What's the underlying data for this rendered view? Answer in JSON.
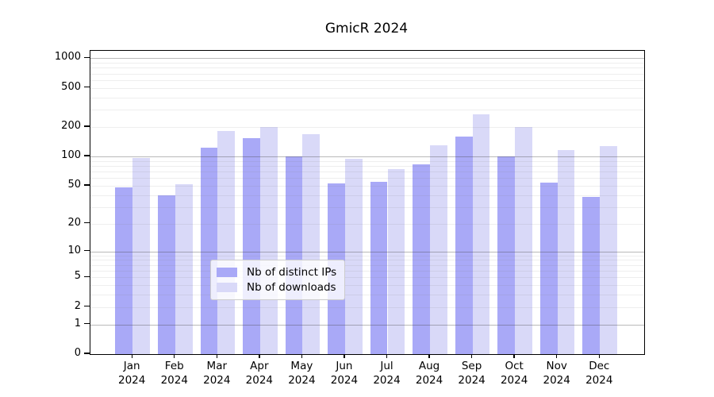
{
  "chart_data": {
    "type": "bar",
    "title": "GmicR 2024",
    "x_year": "2024",
    "categories": [
      "Jan",
      "Feb",
      "Mar",
      "Apr",
      "May",
      "Jun",
      "Jul",
      "Aug",
      "Sep",
      "Oct",
      "Nov",
      "Dec"
    ],
    "series": [
      {
        "name": "Nb of distinct IPs",
        "color": "#a9a9f7",
        "values": [
          48,
          40,
          124,
          153,
          100,
          53,
          55,
          83,
          160,
          100,
          54,
          38
        ]
      },
      {
        "name": "Nb of downloads",
        "color": "#d9d9f8",
        "values": [
          97,
          52,
          183,
          200,
          170,
          95,
          74,
          130,
          270,
          198,
          117,
          127
        ]
      }
    ],
    "y_scale": "log1p",
    "y_tick_values": [
      0,
      1,
      2,
      5,
      10,
      20,
      50,
      100,
      200,
      500,
      1000
    ],
    "y_major_gridlines": [
      1,
      10,
      100,
      1000
    ],
    "ylim": [
      0,
      1190
    ],
    "grid": "horizontal",
    "legend_position": "bottom-center",
    "background": "#ffffff"
  }
}
